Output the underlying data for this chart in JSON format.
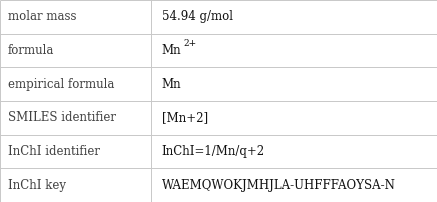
{
  "rows": [
    {
      "label": "molar mass",
      "value": "54.94 g/mol",
      "superscript": null,
      "value_bold": false
    },
    {
      "label": "formula",
      "value": "Mn",
      "superscript": "2+",
      "value_bold": false
    },
    {
      "label": "empirical formula",
      "value": "Mn",
      "superscript": null,
      "value_bold": false
    },
    {
      "label": "SMILES identifier",
      "value": "[Mn+2]",
      "superscript": null,
      "value_bold": false
    },
    {
      "label": "InChI identifier",
      "value": "InChI=1/Mn/q+2",
      "superscript": null,
      "value_bold": false
    },
    {
      "label": "InChI key",
      "value": "WAEMQWOKJMHJLA-UHFFFAOYSA-N",
      "superscript": null,
      "value_bold": false
    }
  ],
  "col_split": 0.345,
  "bg_color": "#ffffff",
  "border_color": "#c8c8c8",
  "label_color": "#404040",
  "value_color": "#111111",
  "font_size": 8.5,
  "superscript_size": 6.5,
  "figwidth": 4.37,
  "figheight": 2.02,
  "dpi": 100
}
